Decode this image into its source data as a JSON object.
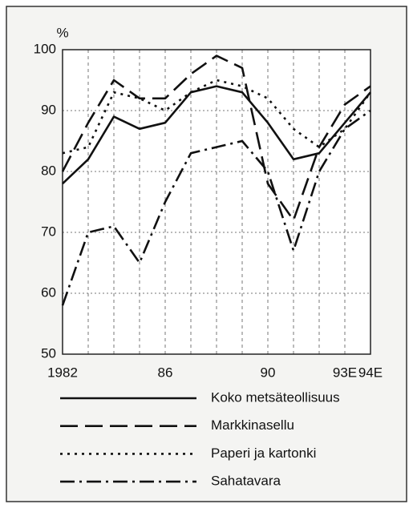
{
  "chart_data": {
    "type": "line",
    "y_label": "%",
    "categories": [
      "1982",
      null,
      null,
      null,
      "86",
      null,
      null,
      null,
      "90",
      null,
      null,
      "93E",
      "94E"
    ],
    "ylim": [
      50,
      100
    ],
    "yticks": [
      50,
      60,
      70,
      80,
      90,
      100
    ],
    "grid": true,
    "series": [
      {
        "name": "Koko metsäteollisuus",
        "color": "#111111",
        "dash": "solid",
        "values": [
          78,
          82,
          89,
          87,
          88,
          93,
          94,
          93,
          88,
          82,
          83,
          88,
          93
        ]
      },
      {
        "name": "Markkinasellu",
        "color": "#111111",
        "dash": "dashed",
        "values": [
          80,
          88,
          95,
          92,
          92,
          96,
          99,
          97,
          78,
          72,
          84,
          91,
          94
        ]
      },
      {
        "name": "Paperi ja kartonki",
        "color": "#111111",
        "dash": "dotted",
        "values": [
          83,
          84,
          93,
          92,
          90,
          93,
          95,
          94,
          92,
          87,
          84,
          87,
          93
        ]
      },
      {
        "name": "Sahatavara",
        "color": "#111111",
        "dash": "dashdot",
        "values": [
          58,
          70,
          71,
          65,
          75,
          83,
          84,
          85,
          80,
          67,
          80,
          87,
          90
        ]
      }
    ]
  }
}
